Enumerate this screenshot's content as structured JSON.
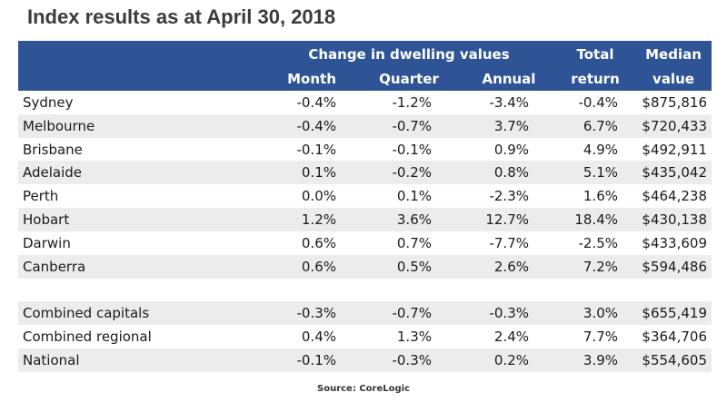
{
  "title": "Index results as at April 30, 2018",
  "table": {
    "group_header": "Change in dwelling values",
    "columns": [
      [
        "Month"
      ],
      [
        "Quarter"
      ],
      [
        "Annual"
      ],
      [
        "Total",
        "return"
      ],
      [
        "Median",
        "value"
      ]
    ],
    "groups": [
      [
        [
          "Sydney",
          "-0.4%",
          "-1.2%",
          "-3.4%",
          "-0.4%",
          "$875,816"
        ],
        [
          "Melbourne",
          "-0.4%",
          "-0.7%",
          "3.7%",
          "6.7%",
          "$720,433"
        ],
        [
          "Brisbane",
          "-0.1%",
          "-0.1%",
          "0.9%",
          "4.9%",
          "$492,911"
        ],
        [
          "Adelaide",
          "0.1%",
          "-0.2%",
          "0.8%",
          "5.1%",
          "$435,042"
        ],
        [
          "Perth",
          "0.0%",
          "0.1%",
          "-2.3%",
          "1.6%",
          "$464,238"
        ],
        [
          "Hobart",
          "1.2%",
          "3.6%",
          "12.7%",
          "18.4%",
          "$430,138"
        ],
        [
          "Darwin",
          "0.6%",
          "0.7%",
          "-7.7%",
          "-2.5%",
          "$433,609"
        ],
        [
          "Canberra",
          "0.6%",
          "0.5%",
          "2.6%",
          "7.2%",
          "$594,486"
        ]
      ],
      [
        [
          "Combined capitals",
          "-0.3%",
          "-0.7%",
          "-0.3%",
          "3.0%",
          "$655,419"
        ],
        [
          "Combined regional",
          "0.4%",
          "1.3%",
          "2.4%",
          "7.7%",
          "$364,706"
        ],
        [
          "National",
          "-0.1%",
          "-0.3%",
          "0.2%",
          "3.9%",
          "$554,605"
        ]
      ]
    ]
  },
  "source": "Source: CoreLogic"
}
